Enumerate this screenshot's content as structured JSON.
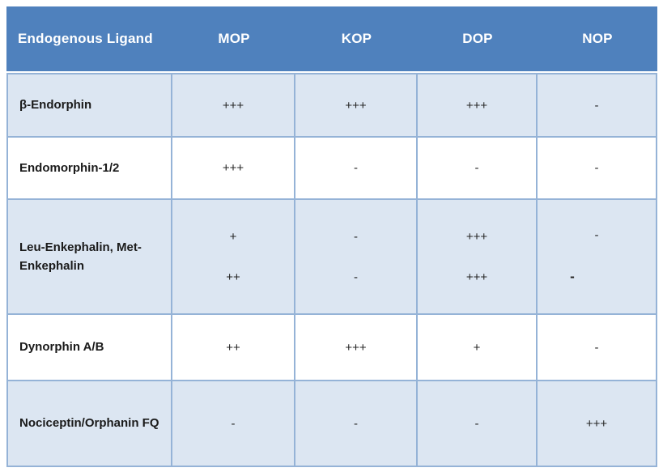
{
  "table": {
    "colors": {
      "header_bg": "#4f81bd",
      "header_text": "#ffffff",
      "alt_row_bg": "#dce6f2",
      "plain_row_bg": "#ffffff",
      "border": "#95b3d7",
      "body_text": "#262626"
    },
    "header": {
      "ligand_label": "Endogenous Ligand",
      "receptors": [
        "MOP",
        "KOP",
        "DOP",
        "NOP"
      ]
    },
    "rows": [
      {
        "ligand": "β-Endorphin",
        "values": [
          "+++",
          "+++",
          "+++",
          "-"
        ]
      },
      {
        "ligand": "Endomorphin-1/2",
        "values": [
          "+++",
          "-",
          "-",
          "-"
        ]
      },
      {
        "ligand": "Leu-Enkephalin, Met-Enkephalin",
        "values": [
          {
            "line1": "+",
            "line2": "++"
          },
          {
            "line1": "-",
            "line2": "-"
          },
          {
            "line1": "+++",
            "line2": "+++"
          },
          {
            "line1": "-",
            "line2": "-"
          }
        ]
      },
      {
        "ligand": "Dynorphin A/B",
        "values": [
          "++",
          "+++",
          "+",
          "-"
        ]
      },
      {
        "ligand": "Nociceptin/Orphanin FQ",
        "values": [
          "-",
          "-",
          "-",
          "+++"
        ]
      }
    ]
  }
}
